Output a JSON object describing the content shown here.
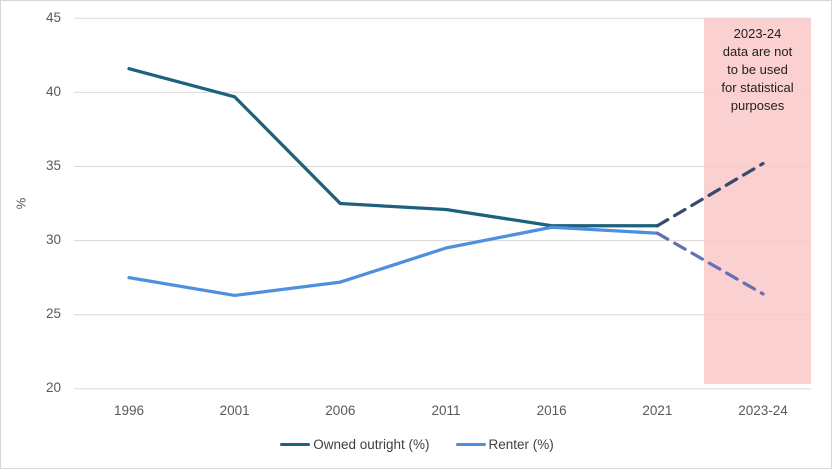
{
  "chart_data": {
    "type": "line",
    "categories": [
      "1996",
      "2001",
      "2006",
      "2011",
      "2016",
      "2021",
      "2023-24"
    ],
    "series": [
      {
        "name": "Owned outright (%)",
        "values": [
          41.6,
          39.7,
          32.5,
          32.1,
          31.0,
          31.0,
          35.2
        ],
        "solid_through_index": 5,
        "color": "#1E617C",
        "projection_color": "#364B6F"
      },
      {
        "name": "Renter (%)",
        "values": [
          27.5,
          26.3,
          27.2,
          29.5,
          30.9,
          30.5,
          26.4
        ],
        "solid_through_index": 5,
        "color": "#4E90DF",
        "projection_color": "#6571B3"
      }
    ],
    "ylabel": "%",
    "ylim": [
      20,
      45
    ],
    "yticks": [
      45,
      40,
      35,
      30,
      25,
      20
    ],
    "grid": true,
    "gridline_color": "#D9D9D9",
    "legend_position": "bottom",
    "projection_style": "dashed",
    "highlight_region": {
      "category": "2023-24",
      "label": "2023-24\ndata are not\nto be used\nfor statistical\npurposes",
      "color": "#FAC8C8"
    }
  }
}
